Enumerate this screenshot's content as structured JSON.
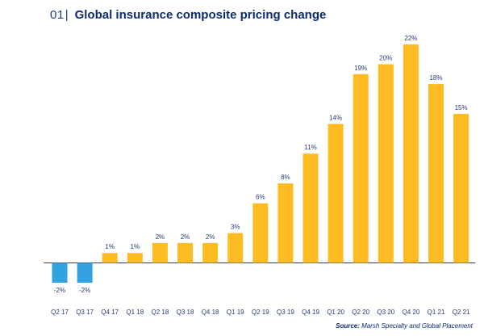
{
  "header": {
    "figure_number": "01",
    "title": "Global insurance composite pricing change"
  },
  "chart_data": {
    "type": "bar",
    "title": "Global insurance composite pricing change",
    "categories": [
      "Q2 17",
      "Q3 17",
      "Q4 17",
      "Q1 18",
      "Q2 18",
      "Q3 18",
      "Q4 18",
      "Q1 19",
      "Q2 19",
      "Q3 19",
      "Q4 19",
      "Q1 20",
      "Q2 20",
      "Q3 20",
      "Q4 20",
      "Q1 21",
      "Q2 21"
    ],
    "values": [
      -2,
      -2,
      1,
      1,
      2,
      2,
      2,
      3,
      6,
      8,
      11,
      14,
      19,
      20,
      22,
      18,
      15
    ],
    "value_labels": [
      "-2%",
      "-2%",
      "1%",
      "1%",
      "2%",
      "2%",
      "2%",
      "3%",
      "6%",
      "8%",
      "11%",
      "14%",
      "19%",
      "20%",
      "22%",
      "18%",
      "15%"
    ],
    "unit": "%",
    "ylim": [
      -2.5,
      23
    ],
    "grid": false,
    "colors": {
      "positive": "#ffbb22",
      "negative": "#32a3e0",
      "axis": "#243a78"
    }
  },
  "source": {
    "label": "Source:",
    "text": "Marsh Specialty and Global Placement"
  }
}
